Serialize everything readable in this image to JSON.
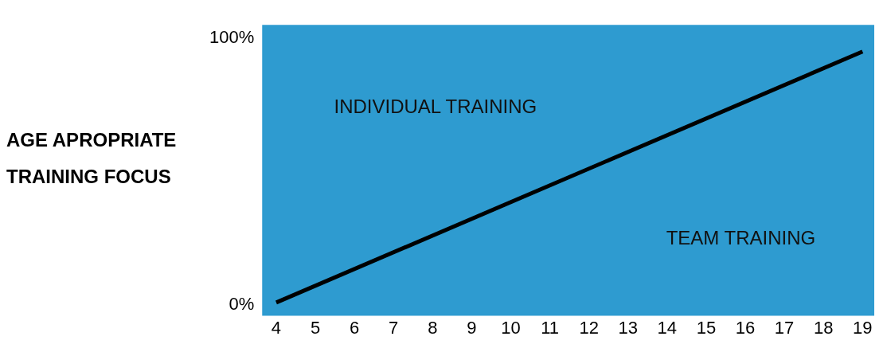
{
  "chart_data": {
    "type": "line",
    "ylabel": "AGE APROPRIATE TRAINING FOCUS",
    "x": [
      4,
      19
    ],
    "series": [
      {
        "color": "#000000",
        "values": [
          1,
          95
        ]
      }
    ],
    "xlim": [
      3.64,
      19.3
    ],
    "xticks": [
      4,
      5,
      6,
      7,
      8,
      9,
      10,
      11,
      12,
      13,
      14,
      15,
      16,
      17,
      18,
      19
    ],
    "ylim": [
      -4,
      105
    ],
    "yticks": [
      {
        "value": 0,
        "label": "0%"
      },
      {
        "value": 100,
        "label": "100%"
      }
    ],
    "bands": [
      {
        "axis": "y",
        "from": -4,
        "to": 105,
        "color": "#2e9bd0"
      }
    ],
    "annotations": [
      "INDIVIDUAL TRAINING",
      "TEAM TRAINING"
    ],
    "grid": false,
    "legend": false,
    "marker": "none",
    "line_style": "solid"
  }
}
